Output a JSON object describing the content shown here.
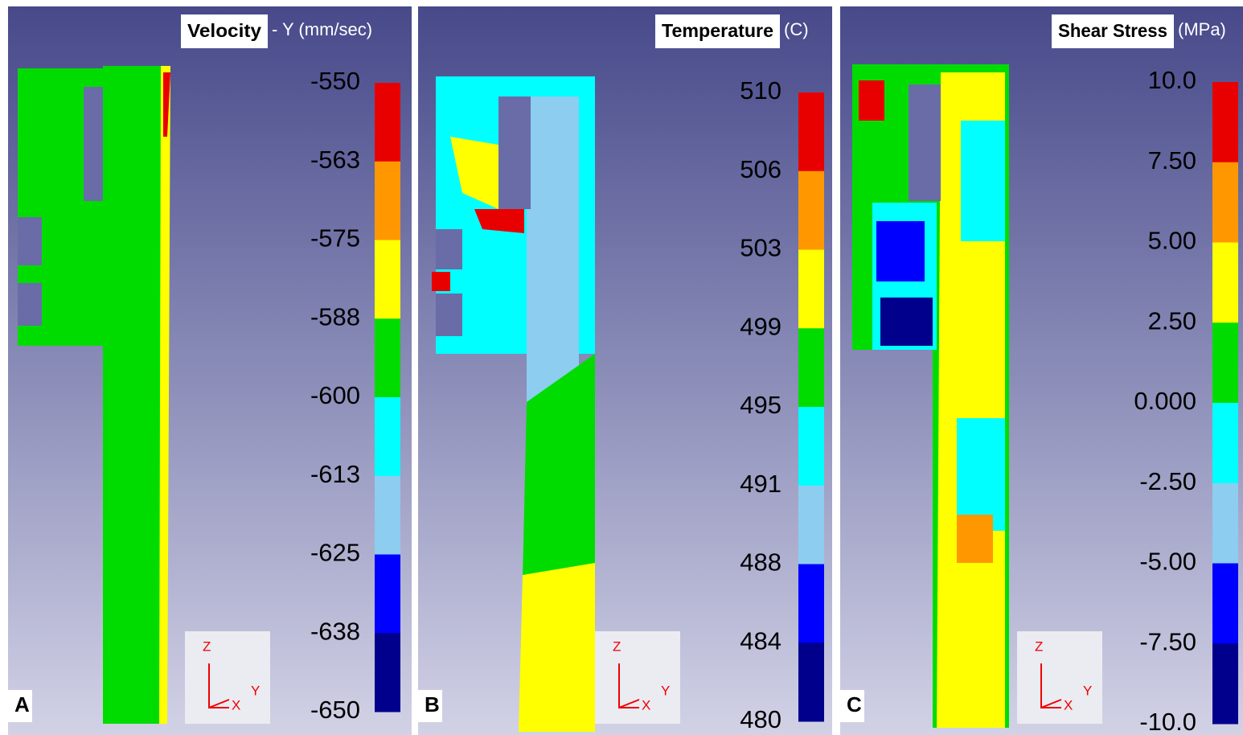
{
  "panels": [
    {
      "title": "Velocity",
      "unit": "- Y (mm/sec)",
      "label": "A",
      "legend_labels": [
        "-550",
        "-563",
        "-575",
        "-588",
        "-600",
        "-613",
        "-625",
        "-638",
        "-650"
      ],
      "axis_labels": [
        "Z",
        "X",
        "Y"
      ]
    },
    {
      "title": "Temperature",
      "unit": "(C)",
      "label": "B",
      "legend_labels": [
        "510",
        "506",
        "503",
        "499",
        "495",
        "491",
        "488",
        "484",
        "480"
      ],
      "axis_labels": [
        "Z",
        "X",
        "Y"
      ]
    },
    {
      "title": "Shear Stress",
      "unit": "(MPa)",
      "label": "C",
      "legend_labels": [
        "10.0",
        "7.50",
        "5.00",
        "2.50",
        "0.000",
        "-2.50",
        "-5.00",
        "-7.50",
        "-10.0"
      ],
      "axis_labels": [
        "Z",
        "X",
        "Y"
      ]
    }
  ]
}
